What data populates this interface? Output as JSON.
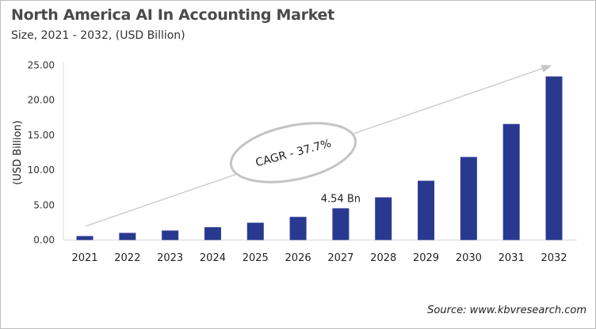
{
  "chart_data": {
    "type": "bar",
    "title": "North America AI In Accounting Market",
    "subtitle": "Size, 2021 - 2032, (USD Billion)",
    "xlabel": "",
    "ylabel": "(USD Billion)",
    "ylim": [
      0,
      25
    ],
    "yticks": [
      "0.00",
      "5.00",
      "10.00",
      "15.00",
      "20.00",
      "25.00"
    ],
    "grid": false,
    "categories": [
      "2021",
      "2022",
      "2023",
      "2024",
      "2025",
      "2026",
      "2027",
      "2028",
      "2029",
      "2030",
      "2031",
      "2032"
    ],
    "values": [
      0.57,
      1.02,
      1.36,
      1.84,
      2.48,
      3.31,
      4.54,
      6.11,
      8.48,
      11.88,
      16.6,
      23.4
    ],
    "bar_color": "#2a3990",
    "annotations": {
      "data_label": {
        "category": "2027",
        "text": "4.54 Bn"
      },
      "cagr": "CAGR - 37.7%"
    },
    "source": "Source: www.kbvresearch.com"
  }
}
